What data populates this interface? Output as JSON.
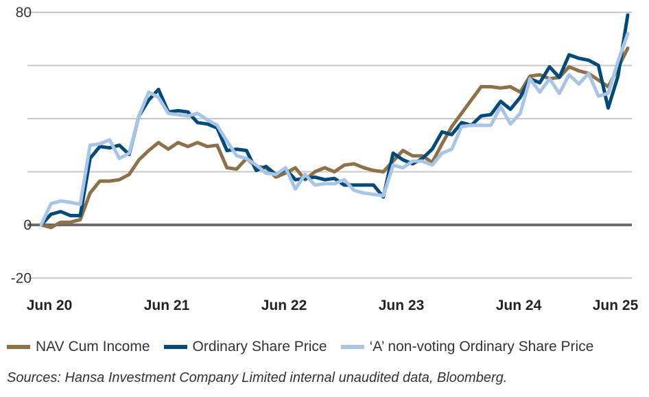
{
  "chart_data": {
    "type": "line",
    "title": "",
    "xlabel": "",
    "ylabel": "",
    "ylim": [
      -20,
      80
    ],
    "yticks": [
      80,
      60,
      40,
      20,
      0,
      -20
    ],
    "ytick_labels": [
      "80",
      "",
      "",
      "",
      "0",
      "-20"
    ],
    "xtick_labels": [
      "Jun 20",
      "Jun 21",
      "Jun 22",
      "Jun 23",
      "Jun 24",
      "Jun 25"
    ],
    "x_points_per_tick": 12,
    "grid": true,
    "legend_position": "bottom",
    "series": [
      {
        "name": "NAV Cum Income",
        "color": "#8B7249",
        "values": [
          0,
          -1,
          1,
          1,
          2,
          12,
          16.5,
          16.5,
          17,
          19,
          24.5,
          28,
          31,
          28.5,
          31,
          29.5,
          31,
          29.5,
          30,
          21.5,
          21,
          25,
          22,
          21.5,
          18,
          19.5,
          21.5,
          17,
          20,
          21.5,
          20,
          22.5,
          23,
          21.5,
          20.5,
          20,
          24,
          28,
          26,
          26,
          23.5,
          30.5,
          37,
          42,
          47,
          52,
          52,
          51.5,
          52,
          50,
          56,
          56.5,
          55,
          55.5,
          59.5,
          58,
          57,
          54.5,
          52,
          59,
          66.5
        ]
      },
      {
        "name": "Ordinary Share Price",
        "color": "#004A7A",
        "values": [
          0,
          4,
          5,
          3.5,
          3.5,
          25,
          29.5,
          29,
          30,
          26.5,
          41,
          47,
          51,
          42.5,
          43,
          42.5,
          38.5,
          38,
          36.5,
          28,
          28.5,
          28,
          20.5,
          22,
          19,
          21,
          17,
          17.5,
          18,
          17,
          17.5,
          15,
          15,
          15,
          15,
          10.5,
          27,
          24.5,
          23,
          25,
          28.5,
          35,
          34,
          38.5,
          37.5,
          41,
          41.5,
          46.5,
          43.5,
          48,
          55,
          53.5,
          59.5,
          55.5,
          64,
          62.7,
          62,
          60,
          44,
          56,
          79
        ]
      },
      {
        "name": "'A' non-voting Ordinary Share Price",
        "color": "#A9C5E6",
        "values": [
          0,
          8,
          9,
          8.5,
          7.7,
          30,
          30.5,
          32,
          25,
          27,
          41,
          50,
          48,
          42,
          41.5,
          41,
          42,
          39.5,
          37.5,
          31.5,
          26,
          25,
          22.5,
          19.5,
          19,
          21.5,
          13.5,
          19,
          15,
          15.5,
          15.5,
          17,
          13,
          12,
          11.5,
          11,
          22.5,
          21.5,
          24,
          24,
          22.5,
          27,
          28.5,
          37,
          37.5,
          37.5,
          37.5,
          44.5,
          38,
          42,
          55,
          50,
          55,
          49.5,
          56.5,
          53,
          57,
          48.5,
          49.5,
          61.5,
          72
        ]
      }
    ]
  },
  "legend": {
    "items": [
      "NAV Cum Income",
      "Ordinary Share Price",
      "‘A’ non-voting Ordinary Share Price"
    ]
  },
  "sources": "Sources: Hansa Investment Company Limited internal unaudited data, Bloomberg."
}
